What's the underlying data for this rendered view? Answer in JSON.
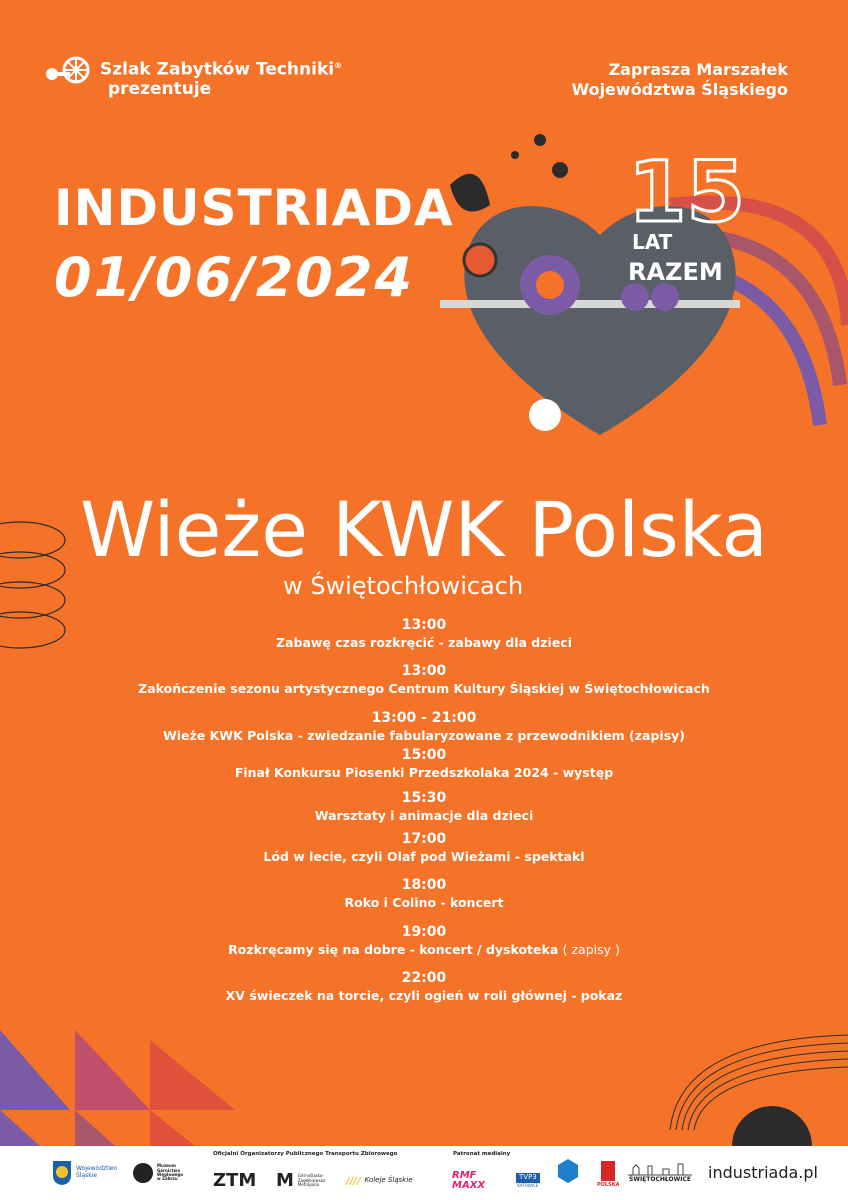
{
  "header": {
    "brand_line1": "Szlak Zabytków Techniki",
    "brand_line2": "prezentuje",
    "registered_mark": "®",
    "invite_line1": "Zaprasza Marszałek",
    "invite_line2": "Województwa Śląskiego"
  },
  "event": {
    "name": "INDUSTRIADA",
    "date": "01/06/2024",
    "badge_number": "15",
    "badge_line1": "LAT",
    "badge_line2": "RAZEM"
  },
  "venue": {
    "title": "Wieże KWK Polska",
    "subtitle": "w Świętochłowicach"
  },
  "schedule": [
    {
      "time": "13:00",
      "desc": "Zabawę czas rozkręcić - zabawy dla dzieci"
    },
    {
      "time": "13:00",
      "desc": "Zakończenie sezonu artystycznego Centrum Kultury Śląskiej w Świętochłowicach"
    },
    {
      "time": "13:00 - 21:00",
      "desc": "Wieże KWK Polska - zwiedzanie fabularyzowane z przewodnikiem (zapisy)"
    },
    {
      "time": "15:00",
      "desc": "Finał Konkursu Piosenki Przedszkolaka 2024 - występ"
    },
    {
      "time": "15:30",
      "desc": "Warsztaty i animacje dla dzieci"
    },
    {
      "time": "17:00",
      "desc": "Lód w lecie, czyli Olaf pod Wieżami - spektakl"
    },
    {
      "time": "18:00",
      "desc": "Roko i Colino - koncert"
    },
    {
      "time": "19:00",
      "desc": "Rozkręcamy się na dobre - koncert / dyskoteka",
      "note": "( zapisy )"
    },
    {
      "time": "22:00",
      "desc": "XV świeczek na torcie, czyli ogień w roli głównej - pokaz"
    }
  ],
  "footer": {
    "voivodeship": "Województwo Śląskie",
    "museum": "Muzeum Górnictwa Węglowego w Zabrzu",
    "transport_heading": "Oficjalni Organizatorzy Publicznego Transportu Zbiorowego",
    "ztm": "ZTM",
    "gzm": "Górnośląsko-Zagłębiowska Metropolia",
    "koleje": "Koleje Śląskie",
    "media_heading": "Patronat medialny",
    "rmf": "RMF MAXX",
    "tvp": "TVP3",
    "tvp_sub": "KATOWICE",
    "polska": "POLSKA",
    "swietochlowice": "ŚWIĘTOCHŁOWICE",
    "website": "industriada.pl"
  },
  "colors": {
    "background": "#f57328",
    "heart": "#5a5e66",
    "purple": "#7b5aa6",
    "dark": "#2b2b2b"
  }
}
